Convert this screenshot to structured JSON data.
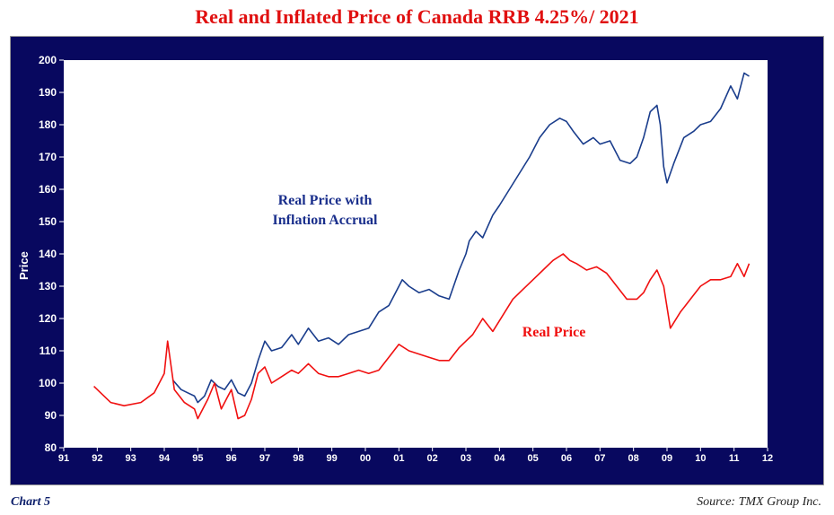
{
  "chart_data": {
    "type": "line",
    "title": "Real and Inflated Price of Canada RRB 4.25%/ 2021",
    "xlabel": "",
    "ylabel": "Price",
    "xlim": [
      1991,
      2012
    ],
    "ylim": [
      80,
      200
    ],
    "yticks": [
      80,
      90,
      100,
      110,
      120,
      130,
      140,
      150,
      160,
      170,
      180,
      190,
      200
    ],
    "xtick_labels": [
      "91",
      "92",
      "93",
      "94",
      "95",
      "96",
      "97",
      "98",
      "99",
      "00",
      "01",
      "02",
      "03",
      "04",
      "05",
      "06",
      "07",
      "08",
      "09",
      "10",
      "11",
      "12"
    ],
    "series": [
      {
        "name": "Real Price with Inflation Accrual",
        "color": "#1a3d8c",
        "x": [
          1994.25,
          1994.5,
          1994.7,
          1994.9,
          1995.0,
          1995.2,
          1995.4,
          1995.6,
          1995.8,
          1996.0,
          1996.2,
          1996.4,
          1996.6,
          1996.8,
          1997.0,
          1997.2,
          1997.5,
          1997.8,
          1998.0,
          1998.3,
          1998.6,
          1998.9,
          1999.2,
          1999.5,
          1999.8,
          2000.1,
          2000.4,
          2000.7,
          2000.9,
          2001.1,
          2001.3,
          2001.6,
          2001.9,
          2002.2,
          2002.5,
          2002.8,
          2003.0,
          2003.1,
          2003.3,
          2003.5,
          2003.8,
          2004.0,
          2004.3,
          2004.6,
          2004.9,
          2005.2,
          2005.5,
          2005.8,
          2006.0,
          2006.2,
          2006.5,
          2006.8,
          2007.0,
          2007.3,
          2007.6,
          2007.9,
          2008.1,
          2008.3,
          2008.5,
          2008.7,
          2008.8,
          2008.9,
          2009.0,
          2009.2,
          2009.5,
          2009.8,
          2010.0,
          2010.3,
          2010.6,
          2010.9,
          2011.1,
          2011.3,
          2011.45
        ],
        "values": [
          101,
          98,
          97,
          96,
          94,
          96,
          101,
          99,
          98,
          101,
          97,
          96,
          100,
          107,
          113,
          110,
          111,
          115,
          112,
          117,
          113,
          114,
          112,
          115,
          116,
          117,
          122,
          124,
          128,
          132,
          130,
          128,
          129,
          127,
          126,
          135,
          140,
          144,
          147,
          145,
          152,
          155,
          160,
          165,
          170,
          176,
          180,
          182,
          181,
          178,
          174,
          176,
          174,
          175,
          169,
          168,
          170,
          176,
          184,
          186,
          180,
          167,
          162,
          168,
          176,
          178,
          180,
          181,
          185,
          192,
          188,
          196,
          195
        ]
      },
      {
        "name": "Real Price",
        "color": "#f01010",
        "x": [
          1991.9,
          1992.1,
          1992.4,
          1992.8,
          1993.3,
          1993.7,
          1994.0,
          1994.1,
          1994.3,
          1994.6,
          1994.9,
          1995.0,
          1995.3,
          1995.5,
          1995.7,
          1996.0,
          1996.2,
          1996.4,
          1996.6,
          1996.8,
          1997.0,
          1997.2,
          1997.5,
          1997.8,
          1998.0,
          1998.3,
          1998.6,
          1998.9,
          1999.2,
          1999.5,
          1999.8,
          2000.1,
          2000.4,
          2000.7,
          2001.0,
          2001.3,
          2001.6,
          2001.9,
          2002.2,
          2002.5,
          2002.8,
          2003.0,
          2003.2,
          2003.5,
          2003.8,
          2004.1,
          2004.4,
          2004.7,
          2005.0,
          2005.3,
          2005.6,
          2005.9,
          2006.1,
          2006.3,
          2006.6,
          2006.9,
          2007.2,
          2007.5,
          2007.8,
          2008.1,
          2008.3,
          2008.5,
          2008.7,
          2008.9,
          2009.1,
          2009.4,
          2009.7,
          2010.0,
          2010.3,
          2010.6,
          2010.9,
          2011.1,
          2011.3,
          2011.45
        ],
        "values": [
          99,
          97,
          94,
          93,
          94,
          97,
          103,
          113,
          98,
          94,
          92,
          89,
          95,
          100,
          92,
          98,
          89,
          90,
          95,
          103,
          105,
          100,
          102,
          104,
          103,
          106,
          103,
          102,
          102,
          103,
          104,
          103,
          104,
          108,
          112,
          110,
          109,
          108,
          107,
          107,
          111,
          113,
          115,
          120,
          116,
          121,
          126,
          129,
          132,
          135,
          138,
          140,
          138,
          137,
          135,
          136,
          134,
          130,
          126,
          126,
          128,
          132,
          135,
          130,
          117,
          122,
          126,
          130,
          132,
          132,
          133,
          137,
          133,
          137
        ]
      }
    ],
    "annotations": [
      {
        "text": "Real Price with",
        "series": "Real Price with Inflation Accrual"
      },
      {
        "text": "Inflation Accrual",
        "series": "Real Price with Inflation Accrual"
      },
      {
        "text": "Real Price",
        "series": "Real Price"
      }
    ],
    "grid": false,
    "legend": "none"
  },
  "footer": {
    "chart_label": "Chart 5",
    "source": "Source: TMX Group Inc."
  }
}
